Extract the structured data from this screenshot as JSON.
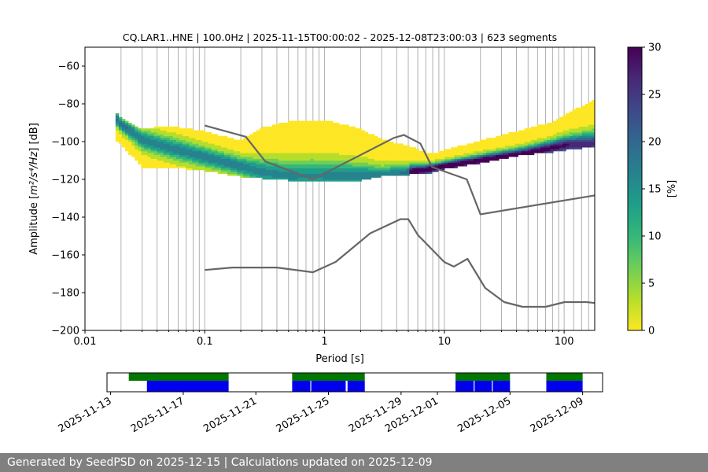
{
  "chart_data": {
    "type": "heatmap",
    "title": "CQ.LAR1..HNE | 100.0Hz | 2025-11-15T00:00:02 - 2025-12-08T23:00:03 | 623 segments",
    "xlabel": "Period [s]",
    "ylabel_prefix": "Amplitude [",
    "ylabel_math": "m²/s⁴/Hz",
    "ylabel_suffix": "] [dB]",
    "x_scale": "log",
    "xlim": [
      0.01,
      180
    ],
    "ylim": [
      -200,
      -50
    ],
    "grid": "vertical at period bins",
    "x_ticks": [
      {
        "value": 0.01,
        "label": "0.01"
      },
      {
        "value": 0.1,
        "label": "0.1"
      },
      {
        "value": 1,
        "label": "1"
      },
      {
        "value": 10,
        "label": "10"
      },
      {
        "value": 100,
        "label": "100"
      }
    ],
    "y_ticks": [
      {
        "value": -60,
        "label": "−60"
      },
      {
        "value": -80,
        "label": "−80"
      },
      {
        "value": -100,
        "label": "−100"
      },
      {
        "value": -120,
        "label": "−120"
      },
      {
        "value": -140,
        "label": "−140"
      },
      {
        "value": -160,
        "label": "−160"
      },
      {
        "value": -180,
        "label": "−180"
      },
      {
        "value": -200,
        "label": "−200"
      }
    ],
    "period_gridlines": [
      0.02,
      0.03,
      0.04,
      0.05,
      0.06,
      0.07,
      0.08,
      0.09,
      0.1,
      0.2,
      0.3,
      0.4,
      0.5,
      0.6,
      0.7,
      0.8,
      0.9,
      1,
      2,
      3,
      4,
      5,
      6,
      7,
      8,
      9,
      10,
      20,
      30,
      40,
      50,
      60,
      70,
      80,
      90,
      100,
      120,
      140,
      160
    ],
    "mode_curve": {
      "x": [
        0.018,
        0.02,
        0.025,
        0.03,
        0.05,
        0.1,
        0.2,
        0.3,
        0.5,
        1,
        2,
        3,
        5,
        7,
        10,
        20,
        50,
        100,
        180
      ],
      "y": [
        -87,
        -91,
        -95,
        -99,
        -103,
        -108,
        -113,
        -116,
        -118,
        -118,
        -118,
        -118,
        -116,
        -115,
        -113,
        -110,
        -106,
        -102,
        -101
      ]
    },
    "psd_envelope": {
      "upper": {
        "x": [
          0.018,
          0.02,
          0.03,
          0.05,
          0.1,
          0.2,
          0.3,
          0.5,
          0.8,
          1.2,
          2,
          3,
          5,
          8,
          10,
          20,
          40,
          80,
          180
        ],
        "y": [
          -84,
          -88,
          -94,
          -92,
          -95,
          -100,
          -93,
          -90,
          -89,
          -90,
          -94,
          -99,
          -103,
          -107,
          -105,
          -100,
          -95,
          -90,
          -78
        ]
      },
      "lower": {
        "x": [
          0.018,
          0.02,
          0.03,
          0.05,
          0.1,
          0.2,
          0.3,
          0.5,
          0.8,
          1,
          2,
          3,
          5,
          8,
          10,
          20,
          40,
          80,
          180
        ],
        "y": [
          -100,
          -102,
          -114,
          -114,
          -116,
          -119,
          -120,
          -121,
          -122,
          -121,
          -121,
          -119,
          -118,
          -117,
          -115,
          -112,
          -108,
          -106,
          -103
        ]
      }
    },
    "noise_models": [
      {
        "curve": "upper",
        "x": [
          0.1,
          0.22,
          0.32,
          0.8,
          3.8,
          4.6,
          6.3,
          7.9,
          15.4,
          20,
          180
        ],
        "y": [
          -91.5,
          -97.4,
          -110.5,
          -120,
          -98,
          -96.5,
          -101,
          -113.5,
          -120,
          -138.5,
          -128.5
        ]
      },
      {
        "curve": "lower",
        "x": [
          0.1,
          0.17,
          0.4,
          0.8,
          1.24,
          2.4,
          4.3,
          5,
          6,
          10,
          12,
          15.6,
          21.9,
          31.6,
          45,
          70,
          101,
          154,
          180
        ],
        "y": [
          -168,
          -166.7,
          -166.7,
          -169.2,
          -163.7,
          -148.6,
          -141.1,
          -141.1,
          -149.4,
          -163.8,
          -166.2,
          -162.1,
          -177.5,
          -185,
          -187.5,
          -187.5,
          -185,
          -185,
          -185.5
        ]
      }
    ],
    "colorbar": {
      "label": "[%]",
      "range": [
        0,
        30
      ],
      "ticks": [
        {
          "value": 0,
          "label": "0"
        },
        {
          "value": 5,
          "label": "5"
        },
        {
          "value": 10,
          "label": "10"
        },
        {
          "value": 15,
          "label": "15"
        },
        {
          "value": 20,
          "label": "20"
        },
        {
          "value": 25,
          "label": "25"
        },
        {
          "value": 30,
          "label": "30"
        }
      ],
      "colormap": [
        "#fde725",
        "#b5de2b",
        "#6ece58",
        "#35b779",
        "#1f9e89",
        "#26828e",
        "#31688e",
        "#3e4989",
        "#482878",
        "#440154"
      ]
    },
    "timeline": {
      "date_ticks": [
        "2025-11-13",
        "2025-11-17",
        "2025-11-21",
        "2025-11-25",
        "2025-11-29",
        "2025-12-01",
        "2025-12-05",
        "2025-12-09"
      ],
      "tick_positions_days": [
        0,
        4,
        8,
        12,
        16,
        18,
        22,
        26
      ],
      "xlim_days": [
        -0.2,
        27.1
      ],
      "available_color": "#007700",
      "used_color": "#0000ee",
      "available": [
        [
          1.0,
          6.5
        ],
        [
          10.0,
          14.0
        ],
        [
          19.0,
          22.0
        ],
        [
          24.0,
          26.0
        ]
      ],
      "used": [
        [
          2.0,
          6.5
        ],
        [
          10.0,
          11.0
        ],
        [
          11.05,
          12.95
        ],
        [
          13.05,
          14.0
        ],
        [
          19.0,
          20.0
        ],
        [
          20.05,
          21.0
        ],
        [
          21.05,
          22.0
        ],
        [
          24.0,
          26.0
        ]
      ]
    }
  },
  "footer": {
    "text": "Generated by SeedPSD on 2025-12-15 | Calculations updated on 2025-12-09"
  }
}
